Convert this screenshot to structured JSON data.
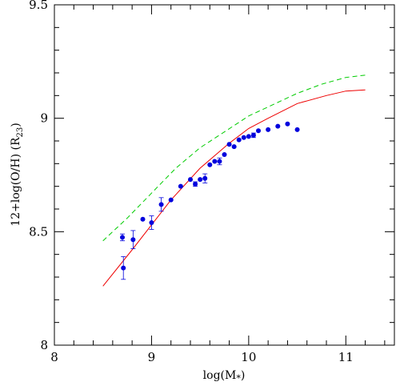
{
  "chart_data": {
    "type": "scatter",
    "xlabel": "log(M*)",
    "ylabel": "12+log(O/H)  (R23)",
    "xlim": [
      8,
      11.5
    ],
    "ylim": [
      8,
      9.5
    ],
    "x_ticks": [
      "8",
      "9",
      "10",
      "11"
    ],
    "y_ticks": [
      "8",
      "8.5",
      "9",
      "9.5"
    ],
    "grid": false,
    "colors": {
      "points": "#0000dd",
      "red_line": "#ee0000",
      "green_dashed": "#00cc00",
      "axes": "#000000"
    },
    "series": [
      {
        "style": "points-with-errorbars",
        "color": "#0000dd",
        "points": [
          {
            "x": 8.7,
            "y": 8.475,
            "err": 0.015
          },
          {
            "x": 8.71,
            "y": 8.34,
            "err": 0.05
          },
          {
            "x": 8.81,
            "y": 8.465,
            "err": 0.04
          },
          {
            "x": 8.91,
            "y": 8.555,
            "err": 0.0
          },
          {
            "x": 9.0,
            "y": 8.54,
            "err": 0.03
          },
          {
            "x": 9.1,
            "y": 8.62,
            "err": 0.03
          },
          {
            "x": 9.2,
            "y": 8.64,
            "err": 0.0
          },
          {
            "x": 9.3,
            "y": 8.7,
            "err": 0.0
          },
          {
            "x": 9.4,
            "y": 8.73,
            "err": 0.0
          },
          {
            "x": 9.45,
            "y": 8.71,
            "err": 0.01
          },
          {
            "x": 9.5,
            "y": 8.73,
            "err": 0.0
          },
          {
            "x": 9.55,
            "y": 8.735,
            "err": 0.02
          },
          {
            "x": 9.6,
            "y": 8.795,
            "err": 0.0
          },
          {
            "x": 9.65,
            "y": 8.81,
            "err": 0.0
          },
          {
            "x": 9.7,
            "y": 8.81,
            "err": 0.015
          },
          {
            "x": 9.75,
            "y": 8.84,
            "err": 0.0
          },
          {
            "x": 9.8,
            "y": 8.885,
            "err": 0.0
          },
          {
            "x": 9.85,
            "y": 8.875,
            "err": 0.0
          },
          {
            "x": 9.9,
            "y": 8.905,
            "err": 0.0
          },
          {
            "x": 9.95,
            "y": 8.915,
            "err": 0.0
          },
          {
            "x": 10.0,
            "y": 8.92,
            "err": 0.0
          },
          {
            "x": 10.05,
            "y": 8.925,
            "err": 0.01
          },
          {
            "x": 10.1,
            "y": 8.945,
            "err": 0.0
          },
          {
            "x": 10.2,
            "y": 8.95,
            "err": 0.0
          },
          {
            "x": 10.3,
            "y": 8.965,
            "err": 0.0
          },
          {
            "x": 10.4,
            "y": 8.975,
            "err": 0.0
          },
          {
            "x": 10.5,
            "y": 8.95,
            "err": 0.0
          }
        ]
      },
      {
        "style": "solid-line",
        "color": "#ee0000",
        "x": [
          8.5,
          8.8,
          9.0,
          9.2,
          9.5,
          9.8,
          10.0,
          10.2,
          10.5,
          10.8,
          11.0,
          11.2
        ],
        "y": [
          8.26,
          8.42,
          8.53,
          8.64,
          8.78,
          8.89,
          8.955,
          9.0,
          9.065,
          9.1,
          9.12,
          9.125
        ]
      },
      {
        "style": "dashed-line",
        "color": "#00cc00",
        "x": [
          8.5,
          8.75,
          9.0,
          9.25,
          9.5,
          9.75,
          10.0,
          10.25,
          10.5,
          10.75,
          11.0,
          11.2
        ],
        "y": [
          8.46,
          8.56,
          8.67,
          8.78,
          8.87,
          8.94,
          9.01,
          9.06,
          9.11,
          9.15,
          9.18,
          9.19
        ]
      }
    ]
  }
}
